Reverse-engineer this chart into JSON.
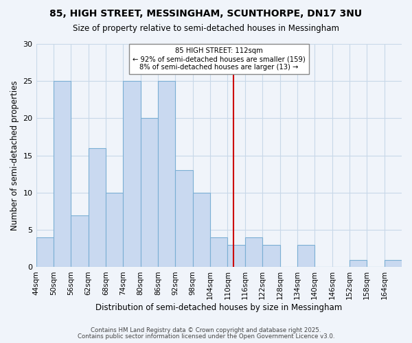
{
  "title": "85, HIGH STREET, MESSINGHAM, SCUNTHORPE, DN17 3NU",
  "subtitle": "Size of property relative to semi-detached houses in Messingham",
  "xlabel": "Distribution of semi-detached houses by size in Messingham",
  "ylabel": "Number of semi-detached properties",
  "bin_labels": [
    "44sqm",
    "50sqm",
    "56sqm",
    "62sqm",
    "68sqm",
    "74sqm",
    "80sqm",
    "86sqm",
    "92sqm",
    "98sqm",
    "104sqm",
    "110sqm",
    "116sqm",
    "122sqm",
    "128sqm",
    "134sqm",
    "140sqm",
    "146sqm",
    "152sqm",
    "158sqm",
    "164sqm"
  ],
  "bin_edges": [
    44,
    50,
    56,
    62,
    68,
    74,
    80,
    86,
    92,
    98,
    104,
    110,
    116,
    122,
    128,
    134,
    140,
    146,
    152,
    158,
    164,
    170
  ],
  "counts": [
    4,
    25,
    7,
    16,
    10,
    25,
    20,
    25,
    13,
    10,
    4,
    3,
    4,
    3,
    0,
    3,
    0,
    0,
    1,
    0,
    1
  ],
  "bar_color": "#c9d9f0",
  "bar_edge_color": "#7bafd4",
  "grid_color": "#c8d8e8",
  "vline_x": 112,
  "vline_color": "#cc0000",
  "annotation_title": "85 HIGH STREET: 112sqm",
  "annotation_line1": "← 92% of semi-detached houses are smaller (159)",
  "annotation_line2": "8% of semi-detached houses are larger (13) →",
  "annotation_box_color": "#ffffff",
  "annotation_box_edge": "#888888",
  "ylim": [
    0,
    30
  ],
  "yticks": [
    0,
    5,
    10,
    15,
    20,
    25,
    30
  ],
  "footer1": "Contains HM Land Registry data © Crown copyright and database right 2025.",
  "footer2": "Contains public sector information licensed under the Open Government Licence v3.0.",
  "bg_color": "#f0f4fa"
}
